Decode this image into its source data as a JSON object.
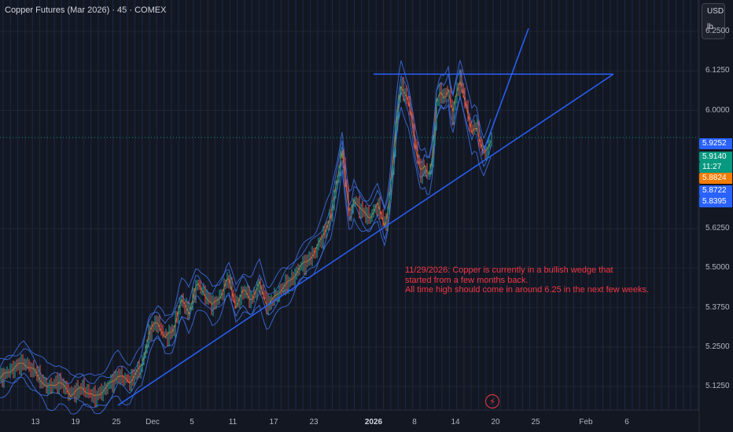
{
  "header": {
    "title": "Copper Futures (Mar 2026) · 45 · COMEX"
  },
  "units": {
    "currency": "USD",
    "unit": "lb"
  },
  "annotation": {
    "lines": [
      "11/29/2026: Copper is currently in a bullish wedge that",
      "started from a few months back.",
      "All time high should come in around 6.25 in the next few weeks."
    ]
  },
  "price_badges": [
    {
      "label": "5.9252",
      "value": 5.9252,
      "color": "#2962ff"
    },
    {
      "label": "5.9140",
      "value": 5.914,
      "color": "#089981"
    },
    {
      "label": "11:27",
      "value": 5.885,
      "color": "#089981"
    },
    {
      "label": "5.8824",
      "value": 5.8824,
      "color": "#f57c00"
    },
    {
      "label": "5.8722",
      "value": 5.8722,
      "color": "#2962ff"
    },
    {
      "label": "5.8395",
      "value": 5.8395,
      "color": "#2962ff"
    }
  ],
  "chart_data": {
    "type": "line",
    "ylim": [
      5.05,
      6.35
    ],
    "y_ticks": [
      "6.2500",
      "6.1250",
      "6.0000",
      "5.6250",
      "5.5000",
      "5.3750",
      "5.2500",
      "5.1250"
    ],
    "x_tick_labels": [
      "13",
      "19",
      "25",
      "Dec",
      "5",
      "11",
      "17",
      "23",
      "2026",
      "8",
      "14",
      "20",
      "25",
      "Feb",
      "6"
    ],
    "last_price": 5.914,
    "series": [
      {
        "x": [
          0,
          15,
          30,
          45,
          60,
          75,
          90,
          105,
          120,
          135,
          150,
          165,
          180,
          190,
          200,
          210,
          220,
          230,
          240,
          250,
          260,
          270,
          280,
          290,
          300,
          310,
          320,
          330,
          340,
          350,
          360,
          370,
          380,
          390,
          400,
          410,
          420,
          430,
          435,
          440,
          445,
          450,
          460,
          470,
          480,
          490,
          495,
          500,
          505,
          510,
          515,
          520,
          525,
          530,
          535,
          540,
          545,
          550,
          555,
          560,
          565,
          570,
          575,
          580,
          585,
          590,
          595,
          600,
          605,
          610,
          615,
          620,
          625
        ],
        "values": [
          5.15,
          5.18,
          5.2,
          5.17,
          5.12,
          5.14,
          5.1,
          5.12,
          5.09,
          5.12,
          5.16,
          5.14,
          5.19,
          5.3,
          5.33,
          5.28,
          5.3,
          5.4,
          5.36,
          5.45,
          5.42,
          5.38,
          5.41,
          5.47,
          5.38,
          5.43,
          5.4,
          5.45,
          5.38,
          5.41,
          5.44,
          5.46,
          5.5,
          5.52,
          5.55,
          5.6,
          5.66,
          5.8,
          5.88,
          5.75,
          5.66,
          5.72,
          5.68,
          5.66,
          5.7,
          5.63,
          5.72,
          5.84,
          6.0,
          6.08,
          6.05,
          6.02,
          5.94,
          5.86,
          5.8,
          5.82,
          5.79,
          5.86,
          6.02,
          6.06,
          6.04,
          6.07,
          5.98,
          6.05,
          6.1,
          6.04,
          5.98,
          5.93,
          5.96,
          5.9,
          5.86,
          5.88,
          5.914
        ]
      }
    ],
    "trendlines": [
      {
        "x": [
          150,
          780
        ],
        "values": [
          5.065,
          6.115
        ]
      },
      {
        "x": [
          475,
          780
        ],
        "values": [
          6.115,
          6.115
        ]
      },
      {
        "x": [
          614,
          672
        ],
        "values": [
          5.865,
          6.26
        ]
      }
    ]
  }
}
